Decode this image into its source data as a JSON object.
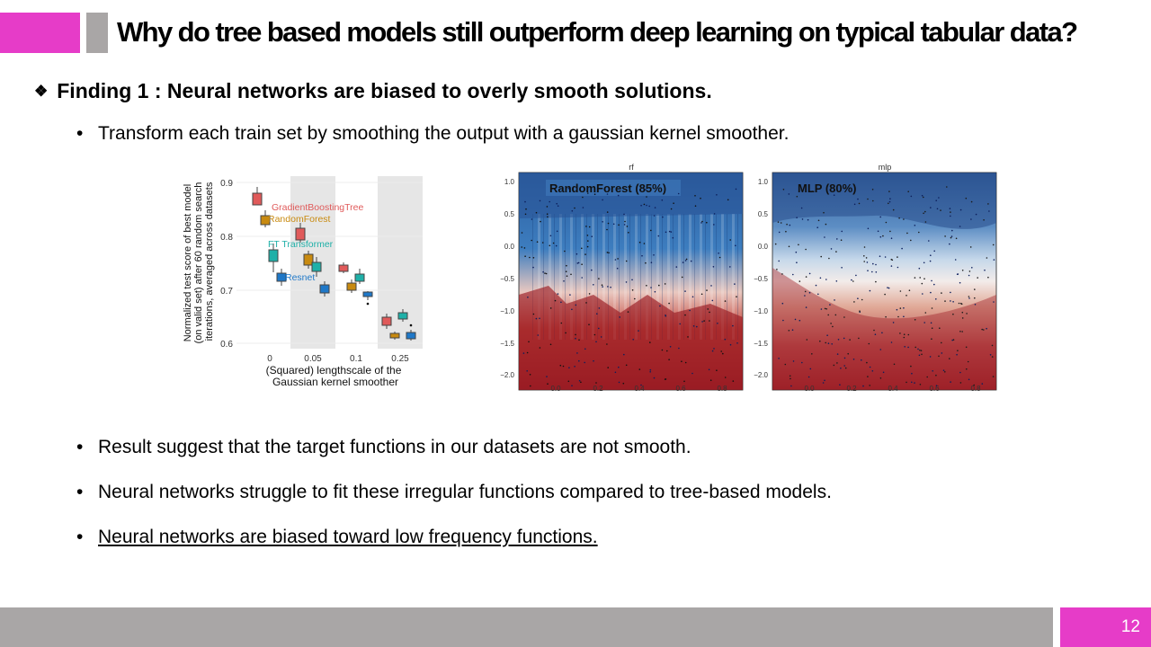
{
  "colors": {
    "accent_magenta": "#e63cc8",
    "gray": "#a9a6a6",
    "white": "#ffffff"
  },
  "slide": {
    "title": "Why do tree based models still outperform deep learning on typical tabular data?",
    "finding_icon": "diamond-bullet-icon",
    "finding": "Finding 1 : Neural networks are biased to overly smooth solutions.",
    "bullets": [
      "Transform each train set by smoothing the output with a gaussian kernel smoother.",
      "Result suggest that the target functions in our datasets are not smooth.",
      "Neural networks struggle to fit these irregular functions compared to tree-based models.",
      "Neural networks are biased toward low frequency functions."
    ],
    "bullet_glyph": "•",
    "page_number": "12"
  },
  "figure_boxplot": {
    "ylabel": "Normalized test score of best model (on valid set) after 60 random search iterations, averaged across datasets",
    "xlabel_line1": "(Squared) lengthscale of the",
    "xlabel_line2": "Gaussian kernel smoother",
    "yticks": [
      "0.9",
      "0.8",
      "0.7",
      "0.6"
    ],
    "xticks": [
      "0",
      "0.05",
      "0.1",
      "0.25"
    ],
    "series": [
      {
        "name": "GradientBoostingTree",
        "color": "#e05a5a"
      },
      {
        "name": "RandomForest",
        "color": "#c88a10"
      },
      {
        "name": "FT Transformer",
        "color": "#1fb0a8"
      },
      {
        "name": "Resnet",
        "color": "#1f78c8"
      }
    ]
  },
  "figure_rf": {
    "panel_title": "rf",
    "label": "RandomForest (85%)",
    "yticks": [
      "1.0",
      "0.5",
      "0.0",
      "−0.5",
      "−1.0",
      "−1.5",
      "−2.0"
    ],
    "xticks": [
      "0.0",
      "0.2",
      "0.4",
      "0.6",
      "0.8"
    ]
  },
  "figure_mlp": {
    "panel_title": "mlp",
    "label": "MLP (80%)",
    "yticks": [
      "1.0",
      "0.5",
      "0.0",
      "−0.5",
      "−1.0",
      "−1.5",
      "−2.0"
    ],
    "xticks": [
      "0.0",
      "0.2",
      "0.4",
      "0.6",
      "0.8"
    ]
  }
}
